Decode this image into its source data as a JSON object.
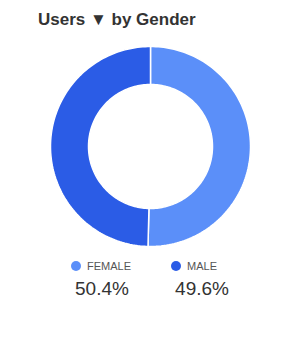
{
  "chart_data": {
    "type": "pie",
    "title": "Users ▼ by Gender",
    "categories": [
      "FEMALE",
      "MALE"
    ],
    "values": [
      50.4,
      49.6
    ],
    "value_labels": [
      "50.4%",
      "49.6%"
    ],
    "colors": [
      "#5B8FF9",
      "#2B5CE6"
    ],
    "legend": "bottom"
  }
}
